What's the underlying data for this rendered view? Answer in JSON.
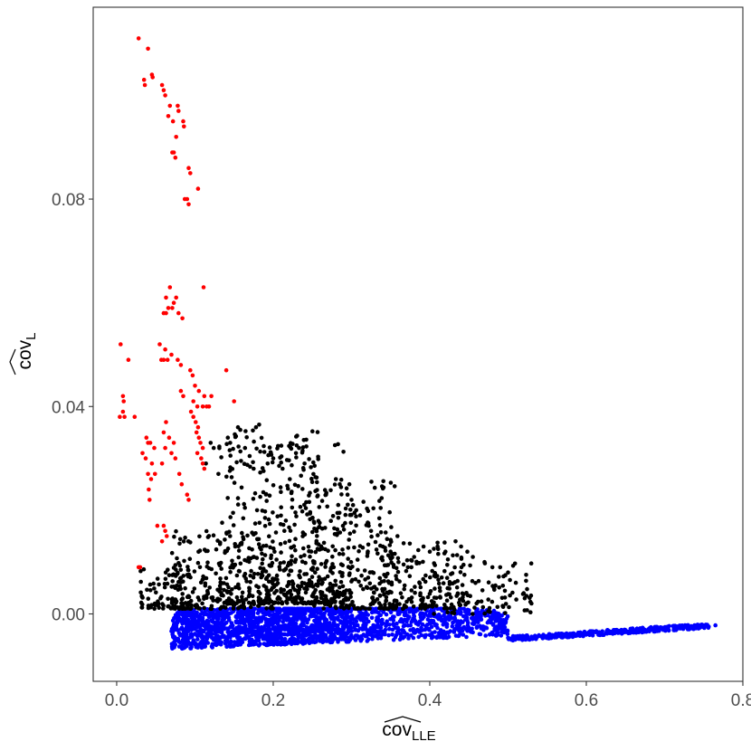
{
  "chart_data": {
    "type": "scatter",
    "title": "",
    "xlabel": "cov",
    "xlabel_subscript": "LLE",
    "ylabel": "cov",
    "ylabel_subscript": "L",
    "xlim": [
      -0.03,
      0.8
    ],
    "ylim": [
      -0.013,
      0.117
    ],
    "x_ticks": [
      0.0,
      0.2,
      0.4,
      0.6,
      0.8
    ],
    "x_tick_labels": [
      "0.0",
      "0.2",
      "0.4",
      "0.6",
      "0.8"
    ],
    "y_ticks": [
      0.0,
      0.04,
      0.08
    ],
    "y_tick_labels": [
      "0.00",
      "0.04",
      "0.08"
    ],
    "grid": false,
    "legend": "none",
    "series_colors": [
      "#ff0000",
      "#000000",
      "#0000ff"
    ],
    "series": [
      {
        "color": "#ff0000",
        "points": [
          [
            0.028,
            0.111
          ],
          [
            0.04,
            0.109
          ],
          [
            0.035,
            0.103
          ],
          [
            0.036,
            0.102
          ],
          [
            0.045,
            0.104
          ],
          [
            0.046,
            0.1035
          ],
          [
            0.058,
            0.102
          ],
          [
            0.06,
            0.101
          ],
          [
            0.062,
            0.1
          ],
          [
            0.068,
            0.098
          ],
          [
            0.078,
            0.098
          ],
          [
            0.079,
            0.097
          ],
          [
            0.066,
            0.096
          ],
          [
            0.072,
            0.095
          ],
          [
            0.085,
            0.095
          ],
          [
            0.086,
            0.094
          ],
          [
            0.076,
            0.092
          ],
          [
            0.073,
            0.089
          ],
          [
            0.075,
            0.088
          ],
          [
            0.071,
            0.089
          ],
          [
            0.092,
            0.086
          ],
          [
            0.094,
            0.085
          ],
          [
            0.104,
            0.082
          ],
          [
            0.087,
            0.08
          ],
          [
            0.09,
            0.08
          ],
          [
            0.092,
            0.079
          ],
          [
            0.068,
            0.063
          ],
          [
            0.111,
            0.063
          ],
          [
            0.063,
            0.061
          ],
          [
            0.076,
            0.061
          ],
          [
            0.073,
            0.06
          ],
          [
            0.066,
            0.059
          ],
          [
            0.071,
            0.059
          ],
          [
            0.06,
            0.058
          ],
          [
            0.079,
            0.058
          ],
          [
            0.084,
            0.057
          ],
          [
            0.063,
            0.058
          ],
          [
            0.005,
            0.052
          ],
          [
            0.055,
            0.052
          ],
          [
            0.062,
            0.051
          ],
          [
            0.07,
            0.05
          ],
          [
            0.057,
            0.049
          ],
          [
            0.06,
            0.049
          ],
          [
            0.065,
            0.049
          ],
          [
            0.078,
            0.049
          ],
          [
            0.082,
            0.048
          ],
          [
            0.015,
            0.049
          ],
          [
            0.094,
            0.047
          ],
          [
            0.097,
            0.046
          ],
          [
            0.14,
            0.047
          ],
          [
            0.1,
            0.044
          ],
          [
            0.105,
            0.043
          ],
          [
            0.112,
            0.042
          ],
          [
            0.082,
            0.043
          ],
          [
            0.085,
            0.042
          ],
          [
            0.121,
            0.042
          ],
          [
            0.008,
            0.042
          ],
          [
            0.009,
            0.041
          ],
          [
            0.098,
            0.041
          ],
          [
            0.103,
            0.04
          ],
          [
            0.11,
            0.04
          ],
          [
            0.115,
            0.04
          ],
          [
            0.118,
            0.04
          ],
          [
            0.15,
            0.041
          ],
          [
            0.008,
            0.039
          ],
          [
            0.004,
            0.038
          ],
          [
            0.01,
            0.038
          ],
          [
            0.095,
            0.039
          ],
          [
            0.098,
            0.038
          ],
          [
            0.101,
            0.037
          ],
          [
            0.104,
            0.036
          ],
          [
            0.023,
            0.038
          ],
          [
            0.063,
            0.037
          ],
          [
            0.102,
            0.035
          ],
          [
            0.105,
            0.034
          ],
          [
            0.107,
            0.033
          ],
          [
            0.11,
            0.032
          ],
          [
            0.06,
            0.035
          ],
          [
            0.067,
            0.034
          ],
          [
            0.073,
            0.033
          ],
          [
            0.038,
            0.034
          ],
          [
            0.04,
            0.033
          ],
          [
            0.043,
            0.033
          ],
          [
            0.048,
            0.032
          ],
          [
            0.062,
            0.032
          ],
          [
            0.07,
            0.031
          ],
          [
            0.075,
            0.03
          ],
          [
            0.103,
            0.031
          ],
          [
            0.108,
            0.03
          ],
          [
            0.11,
            0.029
          ],
          [
            0.033,
            0.031
          ],
          [
            0.037,
            0.03
          ],
          [
            0.045,
            0.029
          ],
          [
            0.058,
            0.029
          ],
          [
            0.112,
            0.028
          ],
          [
            0.04,
            0.027
          ],
          [
            0.044,
            0.026
          ],
          [
            0.049,
            0.027
          ],
          [
            0.041,
            0.024
          ],
          [
            0.042,
            0.022
          ],
          [
            0.08,
            0.027
          ],
          [
            0.083,
            0.025
          ],
          [
            0.06,
            0.017
          ],
          [
            0.062,
            0.016
          ],
          [
            0.064,
            0.015
          ],
          [
            0.058,
            0.014
          ],
          [
            0.052,
            0.017
          ],
          [
            0.028,
            0.009
          ],
          [
            0.03,
            0.009
          ],
          [
            0.09,
            0.023
          ],
          [
            0.092,
            0.022
          ]
        ]
      },
      {
        "color": "#000000",
        "note_clusters": [
          {
            "x": [
              0.03,
              0.1
            ],
            "y": [
              0.001,
              0.009
            ],
            "n": 90
          },
          {
            "x": [
              0.07,
              0.2
            ],
            "y": [
              0.001,
              0.016
            ],
            "n": 220
          },
          {
            "x": [
              0.13,
              0.26
            ],
            "y": [
              0.002,
              0.036
            ],
            "n": 240
          },
          {
            "x": [
              0.18,
              0.3
            ],
            "y": [
              0.002,
              0.033
            ],
            "n": 260
          },
          {
            "x": [
              0.25,
              0.36
            ],
            "y": [
              0.001,
              0.026
            ],
            "n": 220
          },
          {
            "x": [
              0.32,
              0.45
            ],
            "y": [
              0.001,
              0.015
            ],
            "n": 160
          },
          {
            "x": [
              0.4,
              0.53
            ],
            "y": [
              0.0,
              0.01
            ],
            "n": 90
          }
        ],
        "points": [
          [
            0.155,
            0.036
          ],
          [
            0.158,
            0.0355
          ],
          [
            0.178,
            0.036
          ],
          [
            0.182,
            0.0365
          ],
          [
            0.142,
            0.034
          ],
          [
            0.145,
            0.033
          ],
          [
            0.164,
            0.032
          ],
          [
            0.23,
            0.0325
          ],
          [
            0.233,
            0.032
          ],
          [
            0.229,
            0.031
          ],
          [
            0.197,
            0.031
          ],
          [
            0.2,
            0.03
          ],
          [
            0.12,
            0.033
          ],
          [
            0.124,
            0.032
          ],
          [
            0.114,
            0.029
          ],
          [
            0.13,
            0.027
          ],
          [
            0.175,
            0.028
          ],
          [
            0.212,
            0.028
          ],
          [
            0.24,
            0.029
          ],
          [
            0.28,
            0.026
          ],
          [
            0.285,
            0.025
          ],
          [
            0.295,
            0.023
          ],
          [
            0.3,
            0.022
          ],
          [
            0.302,
            0.021
          ],
          [
            0.306,
            0.02
          ],
          [
            0.311,
            0.019
          ],
          [
            0.322,
            0.017
          ],
          [
            0.325,
            0.016
          ],
          [
            0.34,
            0.013
          ],
          [
            0.35,
            0.012
          ],
          [
            0.36,
            0.01
          ],
          [
            0.372,
            0.009
          ],
          [
            0.38,
            0.011
          ],
          [
            0.392,
            0.013
          ],
          [
            0.4,
            0.012
          ],
          [
            0.41,
            0.013
          ],
          [
            0.42,
            0.012
          ],
          [
            0.433,
            0.014
          ],
          [
            0.44,
            0.013
          ],
          [
            0.448,
            0.012
          ],
          [
            0.455,
            0.011
          ],
          [
            0.47,
            0.01
          ],
          [
            0.48,
            0.009
          ],
          [
            0.49,
            0.009
          ],
          [
            0.5,
            0.008
          ],
          [
            0.51,
            0.006
          ],
          [
            0.52,
            0.004
          ],
          [
            0.53,
            0.002
          ]
        ]
      },
      {
        "color": "#0000ff",
        "note_clusters": [
          {
            "x": [
              0.07,
              0.3
            ],
            "y": [
              -0.007,
              0.001
            ],
            "n": 1400
          },
          {
            "x": [
              0.3,
              0.5
            ],
            "y": [
              -0.006,
              0.001
            ],
            "n": 600
          },
          {
            "x": [
              0.5,
              0.76
            ],
            "y": [
              -0.005,
              -0.002
            ],
            "n": 350
          }
        ],
        "points": [
          [
            0.765,
            -0.0022
          ],
          [
            0.75,
            -0.0024
          ],
          [
            0.73,
            -0.0026
          ],
          [
            0.7,
            -0.003
          ],
          [
            0.68,
            -0.0032
          ],
          [
            0.65,
            -0.0035
          ],
          [
            0.62,
            -0.0038
          ],
          [
            0.6,
            -0.004
          ],
          [
            0.57,
            -0.0042
          ],
          [
            0.55,
            -0.0043
          ],
          [
            0.53,
            -0.0044
          ],
          [
            0.5,
            -0.0046
          ]
        ]
      }
    ]
  }
}
